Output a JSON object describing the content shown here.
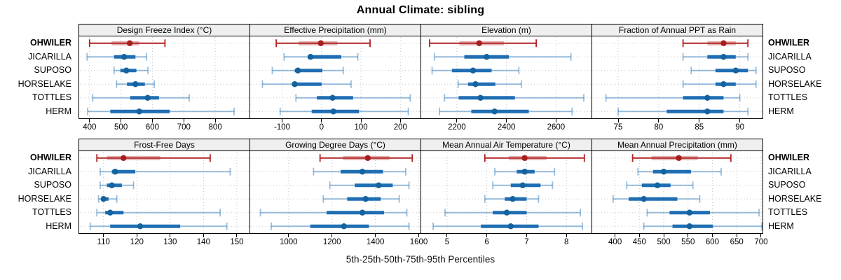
{
  "title": "Annual Climate: sibling",
  "footer_label": "5th-25th-50th-75th-95th Percentiles",
  "stations": [
    "OHWILER",
    "JICARILLA",
    "SUPOSO",
    "HORSELAKE",
    "TOTTLES",
    "HERM"
  ],
  "highlight_station": "OHWILER",
  "colors": {
    "highlight_line": "#B22222",
    "highlight_band": "rgba(178,34,34,0.35)",
    "highlight_dot": "#A51E1E",
    "normal_line": "rgba(31,110,179,0.45)",
    "normal_band": "#1F6EB3",
    "normal_dot": "#14639E",
    "strip_bg": "#EFEFEF",
    "grid": "#C8C8C8",
    "border": "#000000"
  },
  "chart_data": {
    "type": "dot-whisker-trellis",
    "percentile_labels": [
      "5th",
      "25th",
      "50th",
      "75th",
      "95th"
    ],
    "layout": {
      "rows": 2,
      "cols": 4,
      "legend_position": "none",
      "grid": "dotted"
    },
    "panels": [
      {
        "title": "Design Freeze Index (°C)",
        "row": 0,
        "xlim": [
          367,
          909
        ],
        "ticks": [
          400,
          500,
          600,
          700,
          800
        ],
        "series": [
          {
            "station": "OHWILER",
            "p": [
              400,
              470,
              528,
              558,
              640
            ]
          },
          {
            "station": "JICARILLA",
            "p": [
              392,
              478,
              510,
              546,
              581
            ]
          },
          {
            "station": "SUPOSO",
            "p": [
              478,
              498,
              517,
              549,
              586
            ]
          },
          {
            "station": "HORSELAKE",
            "p": [
              486,
              519,
              546,
              576,
              606
            ]
          },
          {
            "station": "TOTTLES",
            "p": [
              410,
              529,
              585,
              621,
              717
            ]
          },
          {
            "station": "HERM",
            "p": [
              394,
              466,
              558,
              655,
              860
            ]
          }
        ]
      },
      {
        "title": "Effective Precipitation (mm)",
        "row": 0,
        "xlim": [
          -181,
          251
        ],
        "ticks": [
          -100,
          0,
          100,
          200
        ],
        "series": [
          {
            "station": "OHWILER",
            "p": [
              -115,
              -58,
              -2,
              40,
              123
            ]
          },
          {
            "station": "JICARILLA",
            "p": [
              -95,
              -35,
              -28,
              50,
              92
            ]
          },
          {
            "station": "SUPOSO",
            "p": [
              -125,
              -68,
              -60,
              2,
              55
            ]
          },
          {
            "station": "HORSELAKE",
            "p": [
              -150,
              -75,
              -68,
              0,
              75
            ]
          },
          {
            "station": "TOTTLES",
            "p": [
              -65,
              -12,
              28,
              80,
              225
            ]
          },
          {
            "station": "HERM",
            "p": [
              -105,
              -25,
              30,
              95,
              220
            ]
          }
        ]
      },
      {
        "title": "Elevation (m)",
        "row": 0,
        "xlim": [
          2056,
          2743
        ],
        "ticks": [
          2200,
          2400,
          2600
        ],
        "series": [
          {
            "station": "OHWILER",
            "p": [
              2090,
              2210,
              2290,
              2390,
              2520
            ]
          },
          {
            "station": "JICARILLA",
            "p": [
              2110,
              2230,
              2320,
              2410,
              2660
            ]
          },
          {
            "station": "SUPOSO",
            "p": [
              2100,
              2180,
              2265,
              2340,
              2450
            ]
          },
          {
            "station": "HORSELAKE",
            "p": [
              2205,
              2245,
              2275,
              2355,
              2460
            ]
          },
          {
            "station": "TOTTLES",
            "p": [
              2150,
              2207,
              2295,
              2434,
              2712
            ]
          },
          {
            "station": "HERM",
            "p": [
              2130,
              2258,
              2352,
              2490,
              2665
            ]
          }
        ]
      },
      {
        "title": "Fraction of Annual PPT as Rain",
        "row": 0,
        "xlim": [
          71.8,
          92.8
        ],
        "ticks": [
          75,
          80,
          85,
          90
        ],
        "series": [
          {
            "station": "OHWILER",
            "p": [
              83,
              86,
              88,
              89.5,
              91
            ]
          },
          {
            "station": "JICARILLA",
            "p": [
              83,
              86,
              88,
              89.5,
              91
            ]
          },
          {
            "station": "SUPOSO",
            "p": [
              84,
              87,
              89.5,
              91,
              92
            ]
          },
          {
            "station": "HORSELAKE",
            "p": [
              83,
              87,
              88,
              89.5,
              92
            ]
          },
          {
            "station": "TOTTLES",
            "p": [
              73.5,
              83,
              86,
              88,
              90
            ]
          },
          {
            "station": "HERM",
            "p": [
              75,
              81,
              86,
              88,
              91
            ]
          }
        ]
      },
      {
        "title": "Frost-Free Days",
        "row": 1,
        "xlim": [
          102.7,
          153.8
        ],
        "ticks": [
          110,
          120,
          130,
          140,
          150
        ],
        "series": [
          {
            "station": "OHWILER",
            "p": [
              108,
              111,
              116,
              127,
              142
            ]
          },
          {
            "station": "JICARILLA",
            "p": [
              109,
              112.5,
              113.5,
              119.5,
              148
            ]
          },
          {
            "station": "SUPOSO",
            "p": [
              109,
              111,
              112.5,
              115.5,
              119
            ]
          },
          {
            "station": "HORSELAKE",
            "p": [
              108.5,
              109.5,
              110,
              111.5,
              114
            ]
          },
          {
            "station": "TOTTLES",
            "p": [
              108,
              110.5,
              112,
              116,
              145
            ]
          },
          {
            "station": "HERM",
            "p": [
              106,
              112,
              121,
              133,
              147
            ]
          }
        ]
      },
      {
        "title": "Growing Degree Days (°C)",
        "row": 1,
        "xlim": [
          823,
          1608
        ],
        "ticks": [
          1000,
          1200,
          1400,
          1600
        ],
        "series": [
          {
            "station": "OHWILER",
            "p": [
              1145,
              1250,
              1365,
              1465,
              1570
            ]
          },
          {
            "station": "JICARILLA",
            "p": [
              1115,
              1240,
              1340,
              1435,
              1540
            ]
          },
          {
            "station": "SUPOSO",
            "p": [
              1190,
              1305,
              1415,
              1480,
              1555
            ]
          },
          {
            "station": "HORSELAKE",
            "p": [
              1160,
              1270,
              1355,
              1425,
              1510
            ]
          },
          {
            "station": "TOTTLES",
            "p": [
              870,
              1175,
              1340,
              1440,
              1545
            ]
          },
          {
            "station": "HERM",
            "p": [
              920,
              1100,
              1255,
              1370,
              1555
            ]
          }
        ]
      },
      {
        "title": "Mean Annual Air Temperature (°C)",
        "row": 1,
        "xlim": [
          4.35,
          8.63
        ],
        "ticks": [
          5,
          6,
          7,
          8
        ],
        "series": [
          {
            "station": "OHWILER",
            "p": [
              5.95,
              6.55,
              6.95,
              7.5,
              8.45
            ]
          },
          {
            "station": "JICARILLA",
            "p": [
              6.2,
              6.75,
              6.95,
              7.2,
              7.7
            ]
          },
          {
            "station": "SUPOSO",
            "p": [
              6.15,
              6.6,
              6.9,
              7.35,
              7.65
            ]
          },
          {
            "station": "HORSELAKE",
            "p": [
              5.95,
              6.45,
              6.65,
              7.0,
              7.3
            ]
          },
          {
            "station": "TOTTLES",
            "p": [
              4.95,
              6.15,
              6.5,
              7.0,
              8.35
            ]
          },
          {
            "station": "HERM",
            "p": [
              4.65,
              5.85,
              6.6,
              7.3,
              8.4
            ]
          }
        ]
      },
      {
        "title": "Mean Annual Precipitation (mm)",
        "row": 1,
        "xlim": [
          353,
          703
        ],
        "ticks": [
          400,
          450,
          500,
          550,
          600,
          650,
          700
        ],
        "series": [
          {
            "station": "OHWILER",
            "p": [
              436,
              475,
              531,
              570,
              638
            ]
          },
          {
            "station": "JICARILLA",
            "p": [
              447,
              478,
              500,
              556,
              618
            ]
          },
          {
            "station": "SUPOSO",
            "p": [
              424,
              455,
              487,
              514,
              560
            ]
          },
          {
            "station": "HORSELAKE",
            "p": [
              396,
              428,
              459,
              528,
              574
            ]
          },
          {
            "station": "TOTTLES",
            "p": [
              466,
              512,
              553,
              595,
              696
            ]
          },
          {
            "station": "HERM",
            "p": [
              459,
              518,
              553,
              601,
              702
            ]
          }
        ]
      }
    ]
  }
}
